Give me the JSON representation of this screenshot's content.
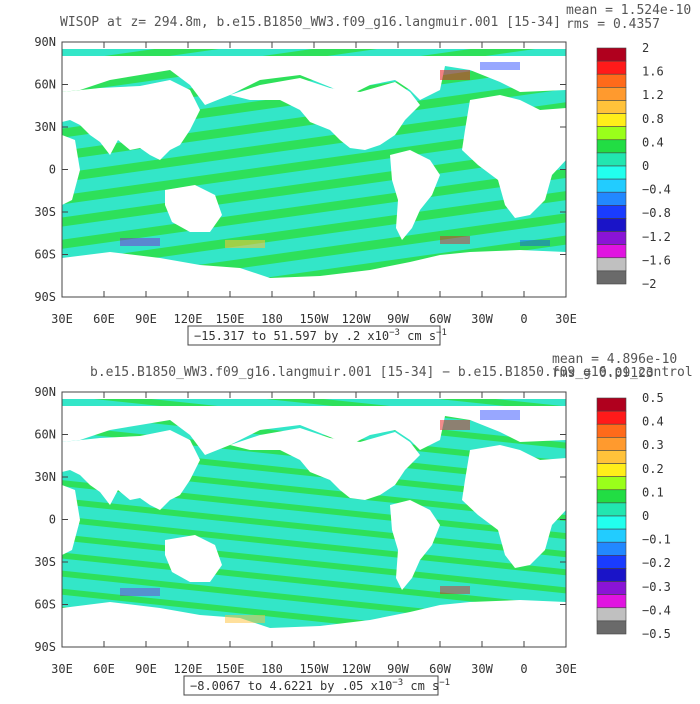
{
  "panels": [
    {
      "title": "WISOP at z= 294.8m, b.e15.B1850_WW3.f09_g16.langmuir.001 [15-34]",
      "stat_mean": "mean = 1.524e-10",
      "stat_rms": "rms = 0.4357",
      "range_note": "−15.317 to 51.597 by .2 x10",
      "range_exp": "−3",
      "range_unit": " cm s",
      "range_unit_exp": "−1",
      "colorbar_labels": [
        "2",
        "1.6",
        "1.2",
        "0.8",
        "0.4",
        "0",
        "−0.4",
        "−0.8",
        "−1.2",
        "−1.6",
        "−2"
      ]
    },
    {
      "title": "b.e15.B1850_WW3.f09_g16.langmuir.001 [15-34] − b.e15.B1850.f09_g16.pi_control",
      "stat_mean": "mean = 4.896e-10",
      "stat_rms": "rms = 0.09123",
      "range_note": "−8.0067 to 4.6221 by .05 x10",
      "range_exp": "−3",
      "range_unit": " cm s",
      "range_unit_exp": "−1",
      "colorbar_labels": [
        "0.5",
        "0.4",
        "0.3",
        "0.2",
        "0.1",
        "0",
        "−0.1",
        "−0.2",
        "−0.3",
        "−0.4",
        "−0.5"
      ]
    }
  ],
  "chart_data": [
    {
      "type": "heatmap",
      "title": "WISOP at z= 294.8m, b.e15.B1850_WW3.f09_g16.langmuir.001 [15-34]",
      "x_ticks": [
        "30E",
        "60E",
        "90E",
        "120E",
        "150E",
        "180",
        "150W",
        "120W",
        "90W",
        "60W",
        "30W",
        "0",
        "30E"
      ],
      "y_ticks": [
        "90N",
        "60N",
        "30N",
        "0",
        "30S",
        "60S",
        "90S"
      ],
      "xlim": [
        30,
        390
      ],
      "ylim": [
        -90,
        90
      ],
      "colorbar_range": [
        -2,
        2
      ],
      "colorbar_ticks": [
        2,
        1.6,
        1.2,
        0.8,
        0.4,
        0,
        -0.4,
        -0.8,
        -1.2,
        -1.6,
        -2
      ],
      "mean": 1.524e-10,
      "rms": 0.4357,
      "data_min": -15.317,
      "data_max": 51.597
    },
    {
      "type": "heatmap",
      "title": "b.e15.B1850_WW3.f09_g16.langmuir.001 [15-34] − b.e15.B1850.f09_g16.pi_control",
      "x_ticks": [
        "30E",
        "60E",
        "90E",
        "120E",
        "150E",
        "180",
        "150W",
        "120W",
        "90W",
        "60W",
        "30W",
        "0",
        "30E"
      ],
      "y_ticks": [
        "90N",
        "60N",
        "30N",
        "0",
        "30S",
        "60S",
        "90S"
      ],
      "xlim": [
        30,
        390
      ],
      "ylim": [
        -90,
        90
      ],
      "colorbar_range": [
        -0.5,
        0.5
      ],
      "colorbar_ticks": [
        0.5,
        0.4,
        0.3,
        0.2,
        0.1,
        0,
        -0.1,
        -0.2,
        -0.3,
        -0.4,
        -0.5
      ],
      "mean": 4.896e-10,
      "rms": 0.09123,
      "data_min": -8.0067,
      "data_max": 4.6221
    }
  ],
  "colors": {
    "ocean_light": "#33e6c8",
    "ocean_green": "#2ee05a",
    "land": "#ffffff",
    "colorbar": [
      "#b0001e",
      "#ff1a1a",
      "#ff6a1a",
      "#ff9a2e",
      "#ffc23a",
      "#ffee1a",
      "#9aff1a",
      "#22dd44",
      "#22e6b0",
      "#22ffee",
      "#22ccff",
      "#2288ff",
      "#1a3cff",
      "#1a14c8",
      "#8a14d6",
      "#e014e0",
      "#c0c0c0",
      "#6a6a6a"
    ]
  }
}
